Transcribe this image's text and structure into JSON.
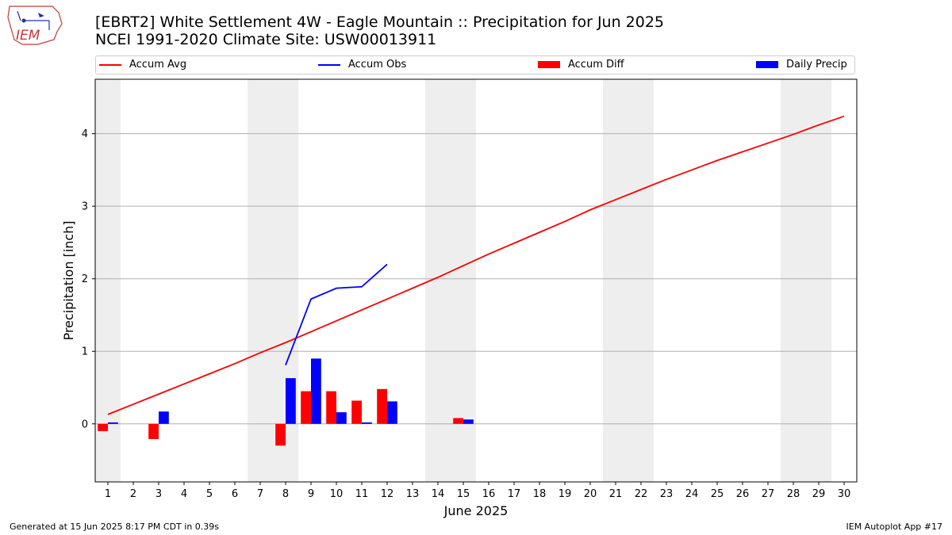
{
  "header": {
    "title_line1": "[EBRT2] White Settlement 4W - Eagle Mountain :: Precipitation for Jun 2025",
    "title_line2": "NCEI 1991-2020 Climate Site: USW00013911"
  },
  "logo": {
    "text": "IEM"
  },
  "footer": {
    "left": "Generated at 15 Jun 2025 8:17 PM CDT in 0.39s",
    "right": "IEM Autoplot App #17"
  },
  "colors": {
    "accum_avg": "#ff0000",
    "accum_obs": "#0000ff",
    "accum_diff": "#ff0000",
    "daily_precip": "#0000ff",
    "weekend_shade": "#eeeeee",
    "grid": "#b0b0b0"
  },
  "chart_data": {
    "type": "bar",
    "title": "[EBRT2] White Settlement 4W - Eagle Mountain :: Precipitation for Jun 2025",
    "subtitle": "NCEI 1991-2020 Climate Site: USW00013911",
    "xlabel": "June 2025",
    "ylabel": "Precipitation [inch]",
    "x": [
      1,
      2,
      3,
      4,
      5,
      6,
      7,
      8,
      9,
      10,
      11,
      12,
      13,
      14,
      15,
      16,
      17,
      18,
      19,
      20,
      21,
      22,
      23,
      24,
      25,
      26,
      27,
      28,
      29,
      30
    ],
    "xlim": [
      0.5,
      30.5
    ],
    "ylim": [
      -0.8,
      4.75
    ],
    "yticks": [
      0,
      1,
      2,
      3,
      4
    ],
    "grid": "y",
    "legend_placement": "top",
    "weekend_shading_days": [
      1,
      7,
      8,
      14,
      15,
      21,
      22,
      28,
      29
    ],
    "series": [
      {
        "name": "Accum Avg",
        "kind": "line",
        "values": [
          0.13,
          0.27,
          0.41,
          0.55,
          0.69,
          0.83,
          0.98,
          1.12,
          1.27,
          1.42,
          1.57,
          1.72,
          1.87,
          2.02,
          2.18,
          2.34,
          2.49,
          2.64,
          2.79,
          2.95,
          3.09,
          3.23,
          3.37,
          3.5,
          3.63,
          3.75,
          3.87,
          3.99,
          4.12,
          4.24
        ]
      },
      {
        "name": "Accum Obs",
        "kind": "line",
        "x": [
          8,
          9,
          10,
          11,
          12
        ],
        "values": [
          0.81,
          1.72,
          1.87,
          1.89,
          2.2
        ]
      },
      {
        "name": "Accum Diff",
        "kind": "bar",
        "values": [
          -0.1,
          0,
          -0.21,
          0,
          0,
          0,
          0,
          -0.3,
          0.45,
          0.45,
          0.32,
          0.48,
          0,
          0,
          0.08,
          null,
          null,
          null,
          null,
          null,
          null,
          null,
          null,
          null,
          null,
          null,
          null,
          null,
          null,
          null
        ]
      },
      {
        "name": "Daily Precip",
        "kind": "bar",
        "values": [
          0.02,
          0,
          0.17,
          0,
          0,
          0,
          0,
          0.63,
          0.9,
          0.16,
          0.02,
          0.31,
          0,
          0,
          0.06,
          null,
          null,
          null,
          null,
          null,
          null,
          null,
          null,
          null,
          null,
          null,
          null,
          null,
          null,
          null
        ]
      }
    ]
  }
}
